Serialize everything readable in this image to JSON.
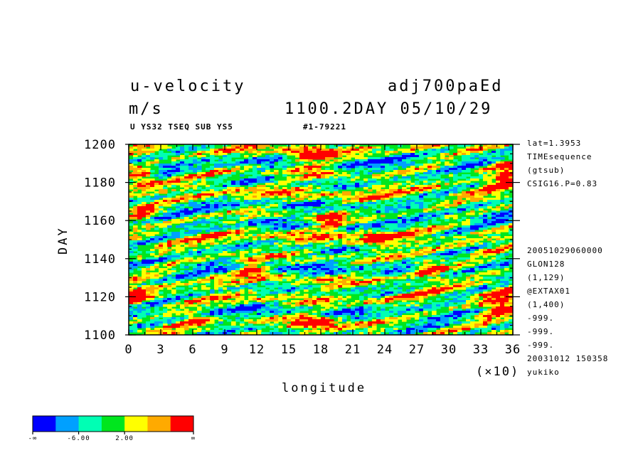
{
  "chart_data": {
    "type": "heatmap",
    "title_left": "u-velocity",
    "units": "m/s",
    "title_right": "adj700paEd",
    "time_stamp": "1100.2DAY 05/10/29",
    "subtitle_left": "U YS32 TSEQ SUB YS5",
    "subtitle_right": "#1-79221",
    "xlabel": "longitude",
    "x_multiplier": "(×10)",
    "ylabel": "DAY",
    "xlim": [
      0,
      36
    ],
    "ylim": [
      1100,
      1200
    ],
    "x_ticks": [
      "0",
      "3",
      "6",
      "9",
      "12",
      "15",
      "18",
      "21",
      "24",
      "27",
      "30",
      "33",
      "36"
    ],
    "y_ticks": [
      "1100",
      "1120",
      "1140",
      "1160",
      "1180",
      "1200"
    ],
    "side_info_top": [
      "lat=1.3953",
      "TIMEsequence",
      "(gtsub)",
      "CSIG16.P=0.83"
    ],
    "side_info_bottom": [
      "20051029060000",
      "GLON128",
      "(1,129)",
      "@EXTAX01",
      "(1,400)",
      "-999.",
      "-999.",
      "-999.",
      "20031012 150358",
      "yukiko"
    ],
    "colorbar": {
      "colors": [
        "#0000ff",
        "#00a0ff",
        "#00ffb4",
        "#00e61e",
        "#ffff00",
        "#ffaa00",
        "#ff0000"
      ],
      "labels": [
        "-∞",
        "-6.00",
        "2.00",
        "∞"
      ]
    }
  }
}
